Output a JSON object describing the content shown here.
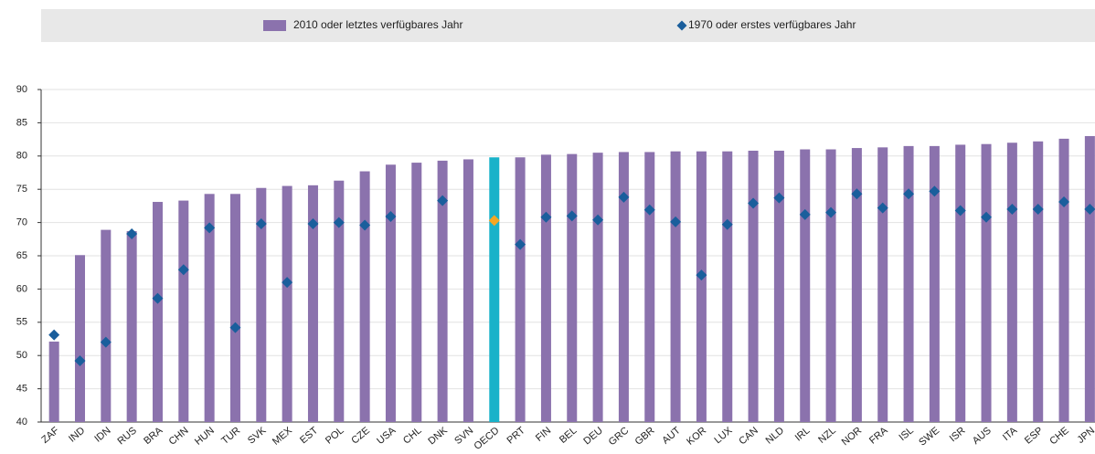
{
  "chart_data": {
    "type": "bar",
    "categories": [
      "ZAF",
      "IND",
      "IDN",
      "RUS",
      "BRA",
      "CHN",
      "HUN",
      "TUR",
      "SVK",
      "MEX",
      "EST",
      "POL",
      "CZE",
      "USA",
      "CHL",
      "DNK",
      "SVN",
      "OECD",
      "PRT",
      "FIN",
      "BEL",
      "DEU",
      "GRC",
      "GBR",
      "AUT",
      "KOR",
      "LUX",
      "CAN",
      "NLD",
      "IRL",
      "NZL",
      "NOR",
      "FRA",
      "ISL",
      "SWE",
      "ISR",
      "AUS",
      "ITA",
      "ESP",
      "CHE",
      "JPN"
    ],
    "series": [
      {
        "name": "2010 oder letztes verfügbares Jahr",
        "type": "bar",
        "color": "#8b72ad",
        "highlight_color": "#19b2c9",
        "values": [
          52.1,
          65.1,
          68.9,
          68.7,
          73.1,
          73.3,
          74.3,
          74.3,
          75.2,
          75.5,
          75.6,
          76.3,
          77.7,
          78.7,
          79.0,
          79.3,
          79.5,
          79.8,
          79.8,
          80.2,
          80.3,
          80.5,
          80.6,
          80.6,
          80.7,
          80.7,
          80.7,
          80.8,
          80.8,
          81.0,
          81.0,
          81.2,
          81.3,
          81.5,
          81.5,
          81.7,
          81.8,
          82.0,
          82.2,
          82.6,
          83.0
        ]
      },
      {
        "name": "1970 oder erstes verfügbares Jahr",
        "type": "diamond",
        "color": "#1a5e9c",
        "highlight_color": "#f5a623",
        "values": [
          53.1,
          49.2,
          52.0,
          68.3,
          58.6,
          62.9,
          69.2,
          54.2,
          69.8,
          61.0,
          69.8,
          70.0,
          69.6,
          70.9,
          null,
          73.3,
          null,
          70.3,
          66.7,
          70.8,
          71.0,
          70.4,
          73.8,
          71.9,
          70.1,
          62.1,
          69.7,
          72.9,
          73.7,
          71.2,
          71.5,
          74.3,
          72.2,
          74.3,
          74.7,
          71.8,
          70.8,
          72.0,
          72.0,
          73.1,
          72.0
        ]
      }
    ],
    "highlight": "OECD",
    "ylim": [
      40,
      90
    ],
    "yticks": [
      40,
      45,
      50,
      55,
      60,
      65,
      70,
      75,
      80,
      85,
      90
    ],
    "grid": true
  }
}
